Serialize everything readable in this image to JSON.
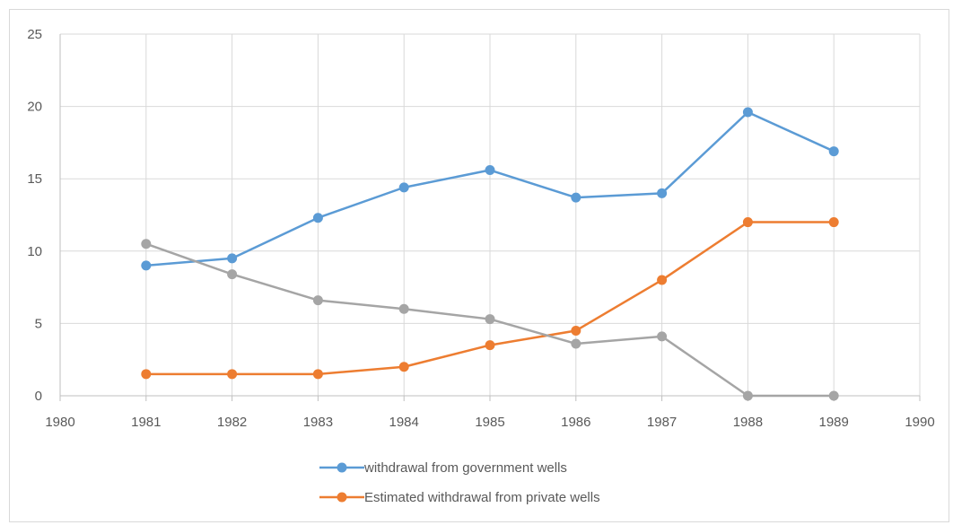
{
  "chart_data": {
    "type": "line",
    "title": "",
    "xlabel": "",
    "ylabel": "",
    "xlim": [
      1980,
      1990
    ],
    "ylim": [
      0,
      25
    ],
    "x_ticks": [
      1980,
      1981,
      1982,
      1983,
      1984,
      1985,
      1986,
      1987,
      1988,
      1989,
      1990
    ],
    "y_ticks": [
      0,
      5,
      10,
      15,
      20,
      25
    ],
    "grid": true,
    "legend_position": "bottom",
    "x": [
      1981,
      1982,
      1983,
      1984,
      1985,
      1986,
      1987,
      1988,
      1989
    ],
    "series": [
      {
        "name": "withdrawal from government wells",
        "color": "#5b9bd5",
        "in_legend": true,
        "values": [
          9.0,
          9.5,
          12.3,
          14.4,
          15.6,
          13.7,
          14.0,
          19.6,
          16.9
        ]
      },
      {
        "name": "Estimated withdrawal from private wells",
        "color": "#ed7d31",
        "in_legend": true,
        "values": [
          1.5,
          1.5,
          1.5,
          2.0,
          3.5,
          4.5,
          8.0,
          12.0,
          12.0
        ]
      },
      {
        "color": "#a5a5a5",
        "in_legend": false,
        "values": [
          10.5,
          8.4,
          6.6,
          6.0,
          5.3,
          3.6,
          4.1,
          0,
          0
        ]
      }
    ]
  }
}
